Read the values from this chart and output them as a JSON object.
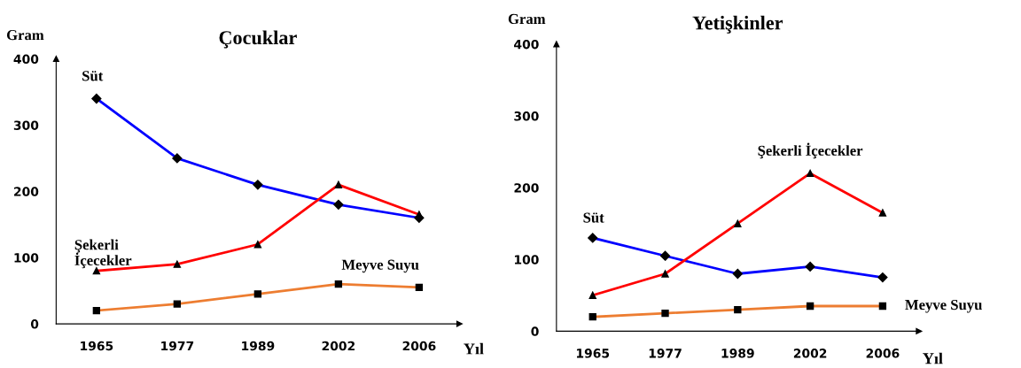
{
  "chart_data": [
    {
      "type": "line",
      "title": "Çocuklar",
      "xlabel": "Yıl",
      "ylabel": "Gram",
      "categories": [
        "1965",
        "1977",
        "1989",
        "2002",
        "2006"
      ],
      "ylim": [
        0,
        400
      ],
      "yticks": [
        0,
        100,
        200,
        300,
        400
      ],
      "grid": false,
      "legend": false,
      "series": [
        {
          "name": "Süt",
          "color": "#0000ff",
          "marker": "diamond",
          "values": [
            340,
            250,
            210,
            180,
            160
          ]
        },
        {
          "name": "Şekerli İçecekler",
          "color": "#ff0000",
          "marker": "triangle",
          "values": [
            80,
            90,
            120,
            210,
            165
          ]
        },
        {
          "name": "Meyve Suyu",
          "color": "#ed7d31",
          "marker": "square",
          "values": [
            20,
            30,
            45,
            60,
            55
          ]
        }
      ]
    },
    {
      "type": "line",
      "title": "Yetişkinler",
      "xlabel": "Yıl",
      "ylabel": "Gram",
      "categories": [
        "1965",
        "1977",
        "1989",
        "2002",
        "2006"
      ],
      "ylim": [
        0,
        400
      ],
      "yticks": [
        0,
        100,
        200,
        300,
        400
      ],
      "grid": false,
      "legend": false,
      "series": [
        {
          "name": "Süt",
          "color": "#0000ff",
          "marker": "diamond",
          "values": [
            130,
            105,
            80,
            90,
            75
          ]
        },
        {
          "name": "Şekerli İçecekler",
          "color": "#ff0000",
          "marker": "triangle",
          "values": [
            50,
            80,
            150,
            220,
            165
          ]
        },
        {
          "name": "Meyve Suyu",
          "color": "#ed7d31",
          "marker": "square",
          "values": [
            20,
            25,
            30,
            35,
            35
          ]
        }
      ]
    }
  ]
}
